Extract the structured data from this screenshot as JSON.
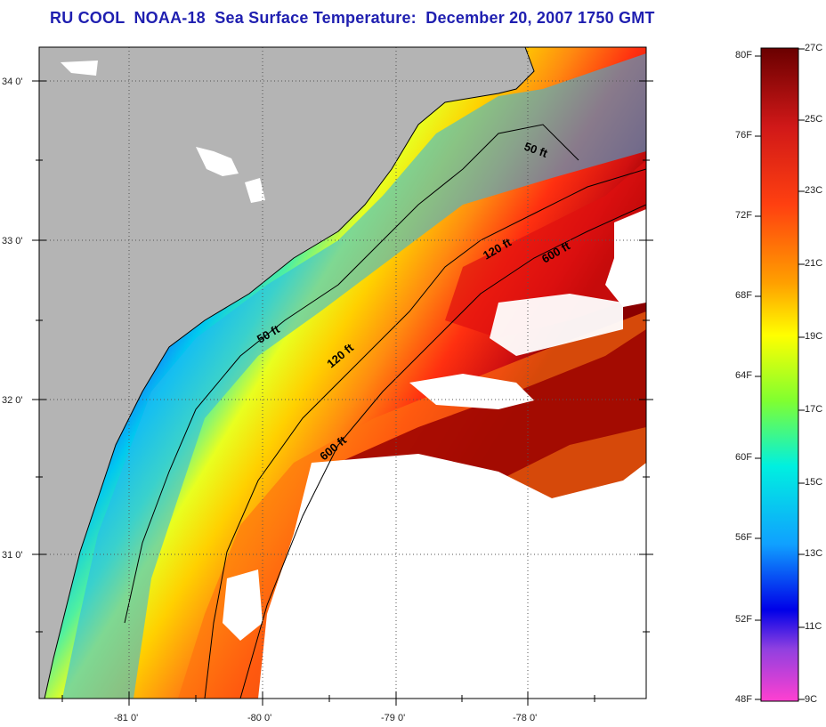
{
  "title": "RU COOL  NOAA-18  Sea Surface Temperature:  December 20, 2007 1750 GMT",
  "map": {
    "lat_labels": [
      "34 0'",
      "33 0'",
      "32 0'",
      "31 0'"
    ],
    "lon_labels": [
      "-81 0'",
      "-80 0'",
      "-79 0'",
      "-78 0'"
    ],
    "contour_labels": [
      "50 ft",
      "50 ft",
      "120 ft",
      "120 ft",
      "600 ft",
      "600 ft"
    ]
  },
  "colorbar": {
    "fahrenheit_labels": [
      "80F",
      "76F",
      "72F",
      "68F",
      "64F",
      "60F",
      "56F",
      "52F",
      "48F"
    ],
    "celsius_labels": [
      "27C",
      "25C",
      "23C",
      "21C",
      "19C",
      "17C",
      "15C",
      "13C",
      "11C",
      "9C"
    ],
    "colors": [
      "#7a0000",
      "#d61818",
      "#ff5a10",
      "#ffc800",
      "#ffff00",
      "#80ff30",
      "#00e8e0",
      "#10a0ff",
      "#0000e0",
      "#9040e0",
      "#ff40d0"
    ]
  },
  "legend_colors": {
    "land": "#b4b4b4",
    "no_data": "#ffffff",
    "grid": "#555555"
  }
}
